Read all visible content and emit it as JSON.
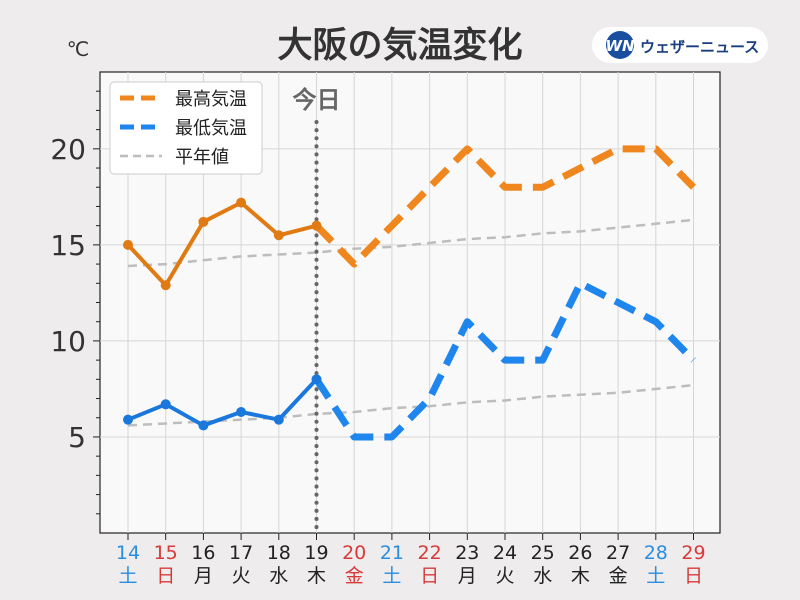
{
  "chart_data": {
    "type": "line",
    "title": "大阪の気温変化",
    "ylabel": "℃",
    "ylim": [
      0,
      24
    ],
    "yticks": [
      5,
      10,
      15,
      20
    ],
    "grid": true,
    "legend_position": "top-left",
    "today_label": "今日",
    "today_index": 5,
    "brand": "ウェザーニュース",
    "brand_mark": "WN",
    "categories": [
      {
        "date": "14",
        "weekday": "土",
        "color": "#2a8ee0"
      },
      {
        "date": "15",
        "weekday": "日",
        "color": "#d83a3a"
      },
      {
        "date": "16",
        "weekday": "月",
        "color": "#222222"
      },
      {
        "date": "17",
        "weekday": "火",
        "color": "#222222"
      },
      {
        "date": "18",
        "weekday": "水",
        "color": "#222222"
      },
      {
        "date": "19",
        "weekday": "木",
        "color": "#222222"
      },
      {
        "date": "20",
        "weekday": "金",
        "color": "#d83a3a"
      },
      {
        "date": "21",
        "weekday": "土",
        "color": "#2a8ee0"
      },
      {
        "date": "22",
        "weekday": "日",
        "color": "#d83a3a"
      },
      {
        "date": "23",
        "weekday": "月",
        "color": "#222222"
      },
      {
        "date": "24",
        "weekday": "火",
        "color": "#222222"
      },
      {
        "date": "25",
        "weekday": "水",
        "color": "#222222"
      },
      {
        "date": "26",
        "weekday": "木",
        "color": "#222222"
      },
      {
        "date": "27",
        "weekday": "金",
        "color": "#222222"
      },
      {
        "date": "28",
        "weekday": "土",
        "color": "#2a8ee0"
      },
      {
        "date": "29",
        "weekday": "日",
        "color": "#d83a3a"
      }
    ],
    "series": [
      {
        "name": "最高気温",
        "color": "#f0861e",
        "observed_color": "#e07a12",
        "values": [
          15,
          12.9,
          16.2,
          17.2,
          15.5,
          16,
          14,
          16,
          18,
          20,
          18,
          18,
          19,
          20,
          20,
          18
        ]
      },
      {
        "name": "最低気温",
        "color": "#1f86ee",
        "observed_color": "#1a78dc",
        "values": [
          5.9,
          6.7,
          5.6,
          6.3,
          5.9,
          8,
          5,
          5,
          7,
          11,
          9,
          9,
          13,
          12,
          11,
          9
        ]
      },
      {
        "name": "平年値",
        "color": "#bdbdbd",
        "upper": [
          13.9,
          14.0,
          14.2,
          14.4,
          14.5,
          14.6,
          14.8,
          14.9,
          15.1,
          15.3,
          15.4,
          15.6,
          15.7,
          15.9,
          16.1,
          16.3
        ],
        "lower": [
          5.6,
          5.7,
          5.8,
          5.9,
          6.0,
          6.2,
          6.3,
          6.5,
          6.6,
          6.8,
          6.9,
          7.1,
          7.2,
          7.3,
          7.5,
          7.7
        ]
      }
    ]
  }
}
